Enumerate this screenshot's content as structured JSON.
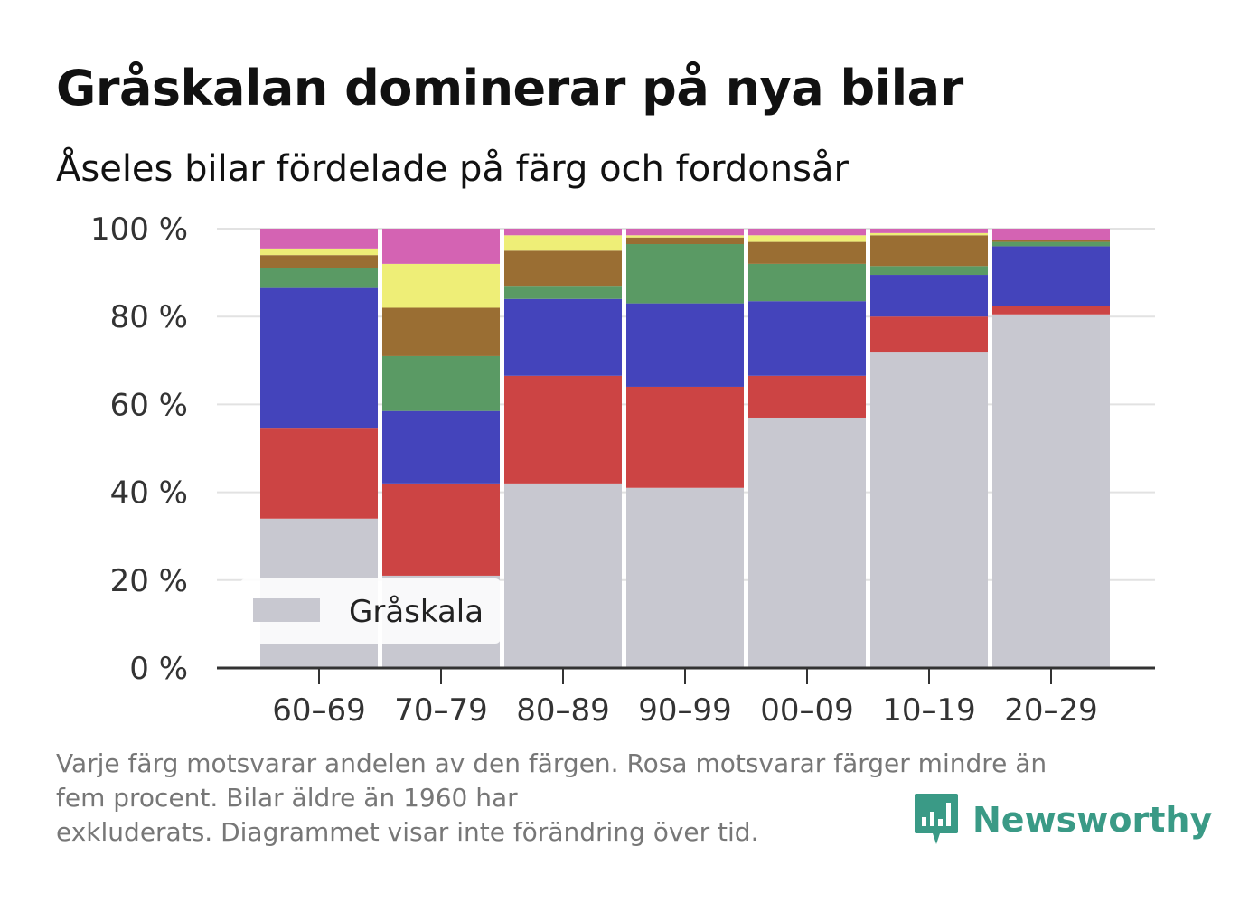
{
  "header": {
    "title": "Gråskalan dominerar på nya bilar",
    "subtitle": "Åseles bilar fördelade på färg och fordonsår"
  },
  "chart_data": {
    "type": "bar",
    "stacked": true,
    "categories": [
      "60–69",
      "70–79",
      "80–89",
      "90–99",
      "00–09",
      "10–19",
      "20–29"
    ],
    "ylim": [
      0,
      100
    ],
    "yticks": [
      0,
      20,
      40,
      60,
      80,
      100
    ],
    "ytick_labels": [
      "0 %",
      "20 %",
      "40 %",
      "60 %",
      "80 %",
      "100 %"
    ],
    "grid": true,
    "legend_position": "bottom-left",
    "series": [
      {
        "name": "Gråskala",
        "color": "#c8c8d0",
        "values": [
          34,
          21,
          42,
          41,
          57,
          72,
          80.5
        ]
      },
      {
        "color": "#cc4444",
        "values": [
          20.5,
          21,
          24.5,
          23,
          9.5,
          8,
          2
        ]
      },
      {
        "color": "#4444bb",
        "values": [
          32,
          16.5,
          17.5,
          19,
          17,
          9.5,
          13.5
        ]
      },
      {
        "color": "#5a9a64",
        "values": [
          4.5,
          12.5,
          3,
          13.5,
          8.5,
          2,
          1
        ]
      },
      {
        "color": "#9a6e33",
        "values": [
          3,
          11,
          8,
          1.5,
          5,
          7,
          0.5
        ]
      },
      {
        "color": "#eeee77",
        "values": [
          1.5,
          10,
          3.5,
          0.5,
          1.5,
          0.5,
          0
        ]
      },
      {
        "color": "#d463b3",
        "values": [
          4.5,
          8,
          1.5,
          1.5,
          1.5,
          1,
          2.5
        ]
      }
    ]
  },
  "footnote": {
    "line1": "Varje färg motsvarar andelen av den färgen. Rosa motsvarar färger mindre än",
    "line2": "fem procent. Bilar äldre än 1960 har",
    "line3": "exkluderats. Diagrammet visar inte förändring över tid."
  },
  "brand": {
    "name": "Newsworthy",
    "icon": "newsworthy-logo-icon",
    "color": "#3a9a86"
  }
}
